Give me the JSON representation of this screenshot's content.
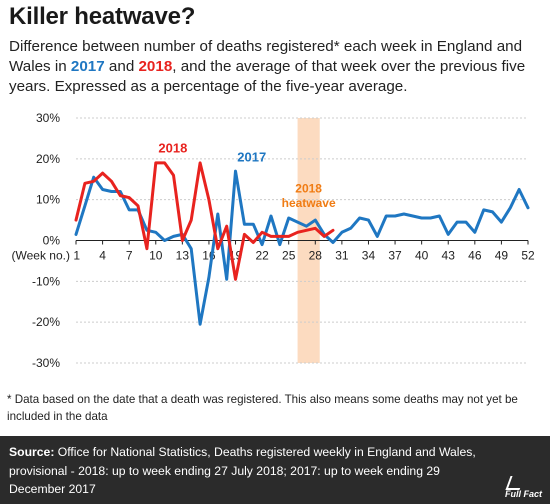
{
  "title": "Killer heatwave?",
  "subtitle": {
    "part1": "Difference between number of deaths registered* each week in England and Wales in ",
    "year_2017": "2017",
    "and": " and ",
    "year_2018": "2018",
    "part2": ", and the average of that week over the previous five years. Expressed as a percentage of the five-year average."
  },
  "chart_data": {
    "type": "line",
    "x_tick_labels": [
      "(Week no.) 1",
      "4",
      "7",
      "10",
      "13",
      "16",
      "19",
      "22",
      "25",
      "28",
      "31",
      "34",
      "37",
      "40",
      "43",
      "46",
      "49",
      "52"
    ],
    "x_ticks": [
      1,
      4,
      7,
      10,
      13,
      16,
      19,
      22,
      25,
      28,
      31,
      34,
      37,
      40,
      43,
      46,
      49,
      52
    ],
    "y_tick_labels": [
      "30%",
      "20%",
      "10%",
      "0%",
      "-10%",
      "-20%",
      "-30%"
    ],
    "y_ticks": [
      30,
      20,
      10,
      0,
      -10,
      -20,
      -30
    ],
    "xlim": [
      1,
      52
    ],
    "ylim": [
      -30,
      30
    ],
    "grid": true,
    "series": [
      {
        "name": "2017",
        "color": "#1f77c2",
        "x": [
          1,
          2,
          3,
          4,
          5,
          6,
          7,
          8,
          9,
          10,
          11,
          12,
          13,
          14,
          15,
          16,
          17,
          18,
          19,
          20,
          21,
          22,
          23,
          24,
          25,
          26,
          27,
          28,
          29,
          30,
          31,
          32,
          33,
          34,
          35,
          36,
          37,
          38,
          39,
          40,
          41,
          42,
          43,
          44,
          45,
          46,
          47,
          48,
          49,
          50,
          51,
          52
        ],
        "values": [
          1.5,
          8.5,
          15.5,
          12.5,
          12.0,
          12.0,
          7.5,
          7.5,
          2.5,
          2.0,
          0.0,
          1.0,
          1.5,
          -2.0,
          -20.5,
          -9.0,
          6.5,
          -9.5,
          17.0,
          4.0,
          4.0,
          -1.0,
          6.0,
          -1.0,
          5.5,
          4.5,
          3.5,
          5.0,
          1.5,
          -0.5,
          2.0,
          3.0,
          5.5,
          5.0,
          1.0,
          6.0,
          6.0,
          6.5,
          6.0,
          5.5,
          5.5,
          6.0,
          1.5,
          4.5,
          4.5,
          2.0,
          7.5,
          7.0,
          4.5,
          8.0,
          12.5,
          8.0
        ]
      },
      {
        "name": "2018",
        "color": "#e8231f",
        "x": [
          1,
          2,
          3,
          4,
          5,
          6,
          7,
          8,
          9,
          10,
          11,
          12,
          13,
          14,
          15,
          16,
          17,
          18,
          19,
          20,
          21,
          22,
          23,
          24,
          25,
          26,
          27,
          28,
          29,
          30
        ],
        "values": [
          5.0,
          14.0,
          14.5,
          16.5,
          14.5,
          11.0,
          10.5,
          8.5,
          -2.0,
          19.0,
          19.0,
          16.0,
          0.0,
          5.0,
          19.0,
          10.0,
          -2.0,
          3.5,
          -9.5,
          1.5,
          -0.5,
          2.0,
          1.0,
          1.0,
          1.0,
          2.0,
          2.5,
          3.0,
          1.0,
          2.5
        ]
      }
    ],
    "annotations": [
      {
        "text": "2018",
        "color": "#e8231f"
      },
      {
        "text": "2017",
        "color": "#1f77c2"
      },
      {
        "text": "2018 heatwave",
        "color": "#f07c14",
        "x_start": 26,
        "x_end": 28.5
      }
    ]
  },
  "footnote": "* Data based on the date that a death was registered. This also means some deaths may not yet be included in the data",
  "source": {
    "label": "Source:",
    "text": " Office for National Statistics, Deaths registered weekly in England and Wales, provisional - 2018: up to week ending 27 July 2018; 2017: up to week ending 29 December 2017"
  },
  "logo": "Full Fact",
  "colors": {
    "line_2017": "#1f77c2",
    "line_2018": "#e8231f",
    "heatwave_band": "#fbd5b5",
    "heatwave_text": "#f07c14",
    "footer_bg": "#2b2b2b"
  }
}
